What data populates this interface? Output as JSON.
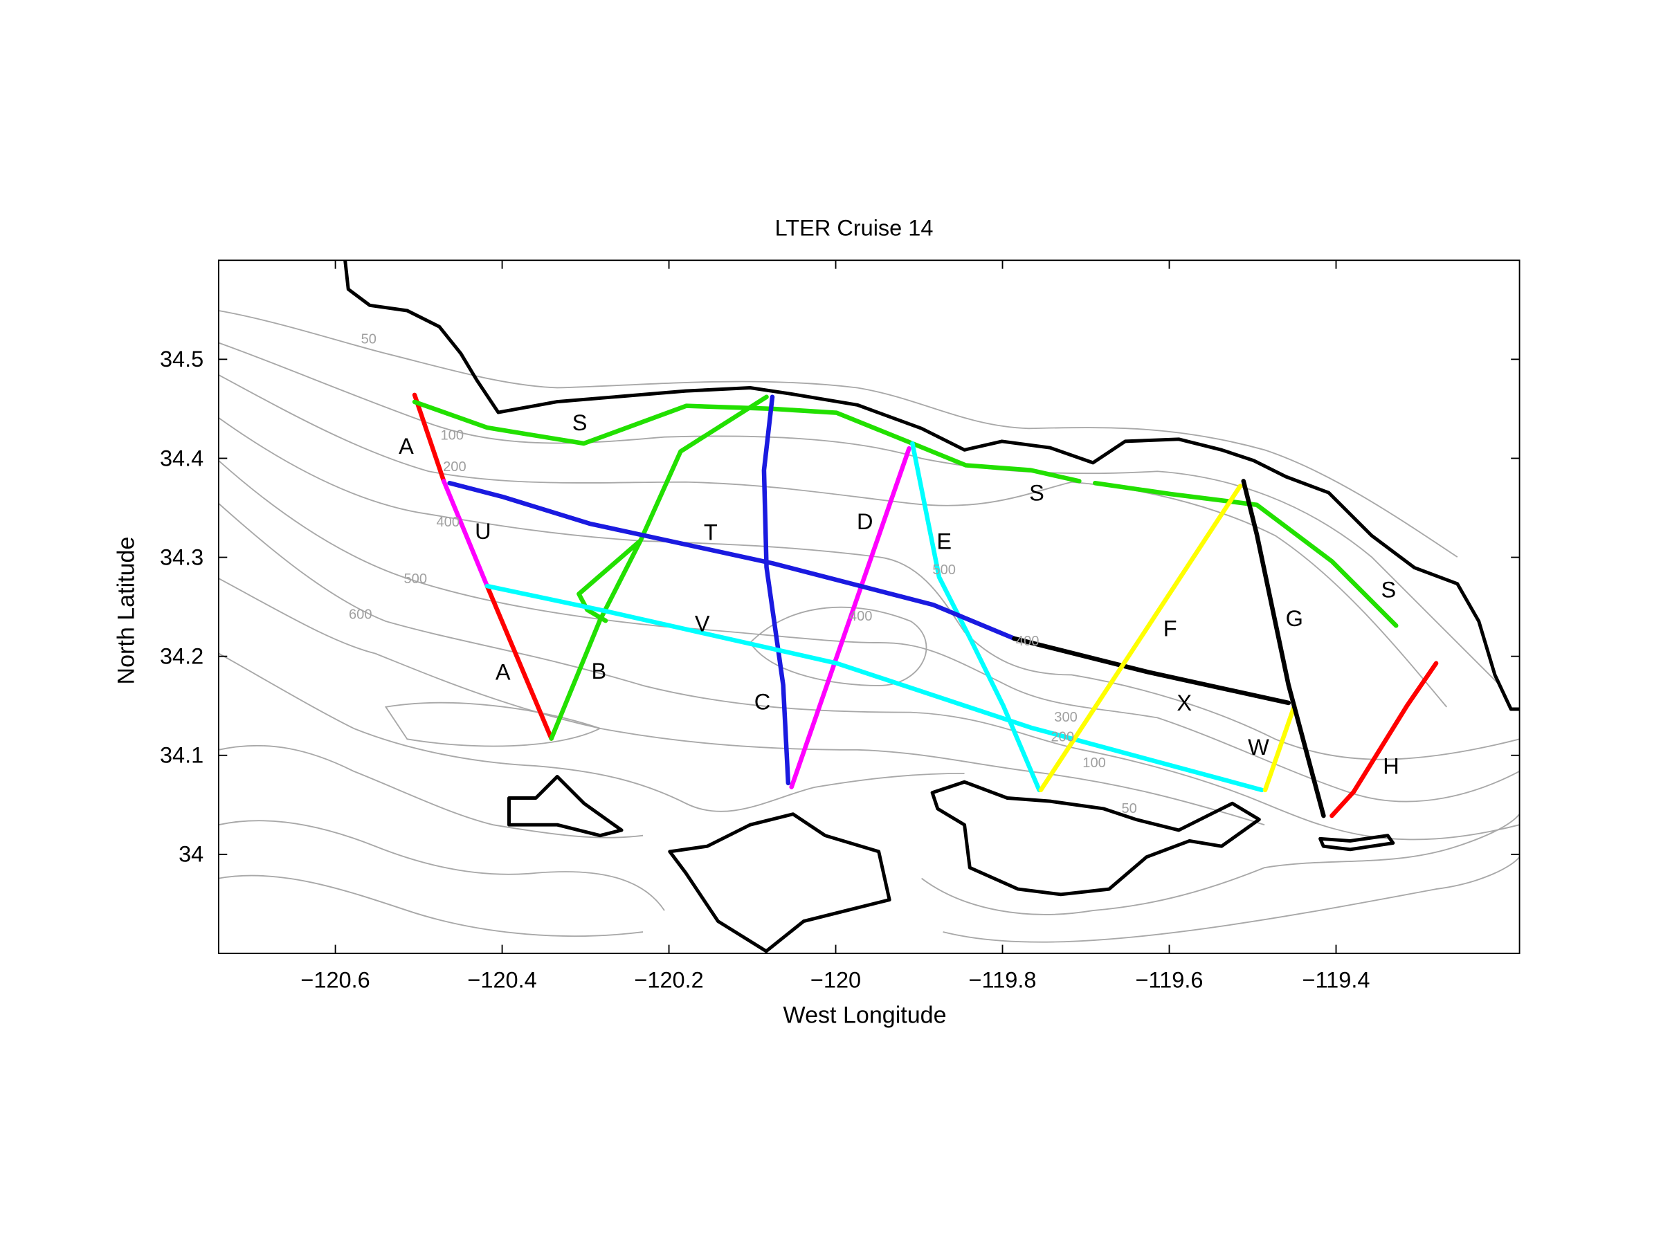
{
  "chart_data": {
    "type": "line",
    "title": "LTER Cruise 14",
    "xlabel": "West Longitude",
    "ylabel": "North Latitude",
    "xlim": [
      -120.74,
      -119.18
    ],
    "ylim": [
      33.9,
      34.6
    ],
    "xticks": [
      {
        "value": -120.6,
        "label": "−120.6"
      },
      {
        "value": -120.4,
        "label": "−120.4"
      },
      {
        "value": -120.2,
        "label": "−120.2"
      },
      {
        "value": -120,
        "label": "−120"
      },
      {
        "value": -119.8,
        "label": "−119.8"
      },
      {
        "value": -119.6,
        "label": "−119.6"
      },
      {
        "value": -119.4,
        "label": "−119.4"
      }
    ],
    "yticks": [
      34,
      34.1,
      34.2,
      34.3,
      34.4,
      34.5
    ],
    "series": [
      {
        "color": "#ff0000",
        "x": [
          -120.505,
          -120.47,
          null,
          -120.418,
          -120.341
        ],
        "y": [
          34.464,
          34.377,
          null,
          34.271,
          34.117
        ]
      },
      {
        "color": "#ff00ff",
        "x": [
          -120.47,
          -120.418
        ],
        "y": [
          34.377,
          34.271
        ]
      },
      {
        "color": "#22e000",
        "x": [
          -120.505,
          -120.418,
          -120.302,
          -120.179,
          -120.076,
          -119.999,
          -119.908,
          -119.844,
          -119.766,
          -119.708,
          null,
          -119.689,
          -119.599,
          -119.495,
          -119.405,
          -119.328
        ],
        "y": [
          34.457,
          34.431,
          34.415,
          34.453,
          34.45,
          34.446,
          34.415,
          34.393,
          34.388,
          34.377,
          null,
          34.375,
          34.364,
          34.353,
          34.296,
          34.231
        ]
      },
      {
        "color": "#22e000",
        "x": [
          -120.341,
          -120.283,
          -120.234,
          -120.186,
          -120.083,
          null,
          -120.234,
          -120.308,
          -120.298,
          -120.276
        ],
        "y": [
          34.117,
          34.236,
          34.317,
          34.407,
          34.462,
          null,
          34.317,
          34.263,
          34.247,
          34.236
        ]
      },
      {
        "color": "#1a1ae0",
        "x": [
          -120.076,
          -120.086,
          -120.083,
          -120.063,
          -120.057
        ],
        "y": [
          34.462,
          34.388,
          34.29,
          34.171,
          34.072
        ]
      },
      {
        "color": "#ff00ff",
        "x": [
          -120.053,
          -119.912
        ],
        "y": [
          34.068,
          34.41
        ]
      },
      {
        "color": "#00ffff",
        "x": [
          -119.908,
          -119.876,
          -119.837,
          -119.799,
          -119.756
        ],
        "y": [
          34.415,
          34.28,
          34.215,
          34.15,
          34.065
        ]
      },
      {
        "color": "#1a1ae0",
        "x": [
          -120.463,
          -120.399,
          -120.295,
          -120.076,
          -119.883,
          -119.786
        ],
        "y": [
          34.375,
          34.361,
          34.334,
          34.294,
          34.252,
          34.218
        ]
      },
      {
        "color": "#000000",
        "x": [
          -119.786,
          -119.625,
          -119.457
        ],
        "y": [
          34.218,
          34.184,
          34.153
        ]
      },
      {
        "color": "#00ffff",
        "x": [
          -120.418,
          -120.283,
          -119.999,
          -119.766,
          -119.489
        ],
        "y": [
          34.271,
          34.247,
          34.193,
          34.128,
          34.065
        ]
      },
      {
        "color": "#ffff00",
        "x": [
          -119.754,
          -119.515
        ],
        "y": [
          34.065,
          34.372
        ]
      },
      {
        "color": "#ffff00",
        "x": [
          -119.485,
          -119.45
        ],
        "y": [
          34.065,
          34.15
        ]
      },
      {
        "color": "#000000",
        "x": [
          -119.511,
          -119.495,
          -119.457,
          -119.415
        ],
        "y": [
          34.377,
          34.323,
          34.171,
          34.039
        ]
      },
      {
        "color": "#ff0000",
        "x": [
          -119.405,
          -119.379,
          -119.315,
          -119.28
        ],
        "y": [
          34.039,
          34.063,
          34.15,
          34.193
        ]
      }
    ],
    "annotations": [
      {
        "text": "A",
        "x": -120.515,
        "y": 34.412
      },
      {
        "text": "S",
        "x": -120.307,
        "y": 34.436
      },
      {
        "text": "U",
        "x": -120.423,
        "y": 34.326
      },
      {
        "text": "T",
        "x": -120.15,
        "y": 34.325
      },
      {
        "text": "D",
        "x": -119.965,
        "y": 34.336
      },
      {
        "text": "E",
        "x": -119.87,
        "y": 34.316
      },
      {
        "text": "S",
        "x": -119.759,
        "y": 34.365
      },
      {
        "text": "V",
        "x": -120.16,
        "y": 34.233
      },
      {
        "text": "F",
        "x": -119.599,
        "y": 34.228
      },
      {
        "text": "G",
        "x": -119.45,
        "y": 34.238
      },
      {
        "text": "S",
        "x": -119.337,
        "y": 34.267
      },
      {
        "text": "A",
        "x": -120.399,
        "y": 34.184
      },
      {
        "text": "B",
        "x": -120.284,
        "y": 34.185
      },
      {
        "text": "C",
        "x": -120.088,
        "y": 34.154
      },
      {
        "text": "X",
        "x": -119.582,
        "y": 34.153
      },
      {
        "text": "W",
        "x": -119.493,
        "y": 34.108
      },
      {
        "text": "H",
        "x": -119.334,
        "y": 34.089
      }
    ],
    "contour_labels": [
      {
        "text": "50",
        "x": -120.56,
        "y": 34.516
      },
      {
        "text": "100",
        "x": -120.46,
        "y": 34.419
      },
      {
        "text": "200",
        "x": -120.457,
        "y": 34.387
      },
      {
        "text": "400",
        "x": -120.465,
        "y": 34.331
      },
      {
        "text": "500",
        "x": -120.504,
        "y": 34.274
      },
      {
        "text": "600",
        "x": -120.57,
        "y": 34.238
      },
      {
        "text": "500",
        "x": -119.87,
        "y": 34.283
      },
      {
        "text": "400",
        "x": -119.97,
        "y": 34.236
      },
      {
        "text": "400",
        "x": -119.77,
        "y": 34.211
      },
      {
        "text": "300",
        "x": -119.724,
        "y": 34.134
      },
      {
        "text": "200",
        "x": -119.728,
        "y": 34.114
      },
      {
        "text": "100",
        "x": -119.69,
        "y": 34.088
      },
      {
        "text": "50",
        "x": -119.648,
        "y": 34.042
      }
    ]
  }
}
